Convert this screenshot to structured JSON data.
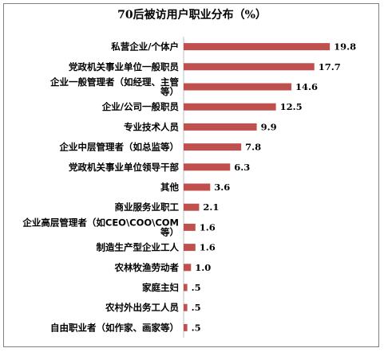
{
  "chart_data": {
    "type": "bar",
    "orientation": "horizontal",
    "title": "70后被访用户职业分布（%）",
    "bar_color": "#c0504d",
    "categories": [
      [
        "私营企业/个体户"
      ],
      [
        "党政机关事业单位一般职员"
      ],
      [
        "企业一般管理者（如经理、主管",
        "等）"
      ],
      [
        "企业/公司一般职员"
      ],
      [
        "专业技术人员"
      ],
      [
        "企业中层管理者（如总监等）"
      ],
      [
        "党政机关事业单位领导干部"
      ],
      [
        "其他"
      ],
      [
        "商业服务业职工"
      ],
      [
        "企业高层管理者（如CEO\\COO\\COM",
        "等）"
      ],
      [
        "制造生产型企业工人"
      ],
      [
        "农林牧渔劳动者"
      ],
      [
        "家庭主妇"
      ],
      [
        "农村外出务工人员"
      ],
      [
        "自由职业者（如作家、画家等）"
      ]
    ],
    "values": [
      19.8,
      17.7,
      14.6,
      12.5,
      9.9,
      7.8,
      6.3,
      3.6,
      2.1,
      1.6,
      1.6,
      1.0,
      0.5,
      0.5,
      0.5
    ],
    "value_labels": [
      "19.8",
      "17.7",
      "14.6",
      "12.5",
      "9.9",
      "7.8",
      "6.3",
      "3.6",
      "2.1",
      "1.6",
      "1.6",
      "1.0",
      ".5",
      ".5",
      ".5"
    ],
    "xlim": [
      0,
      20
    ]
  }
}
